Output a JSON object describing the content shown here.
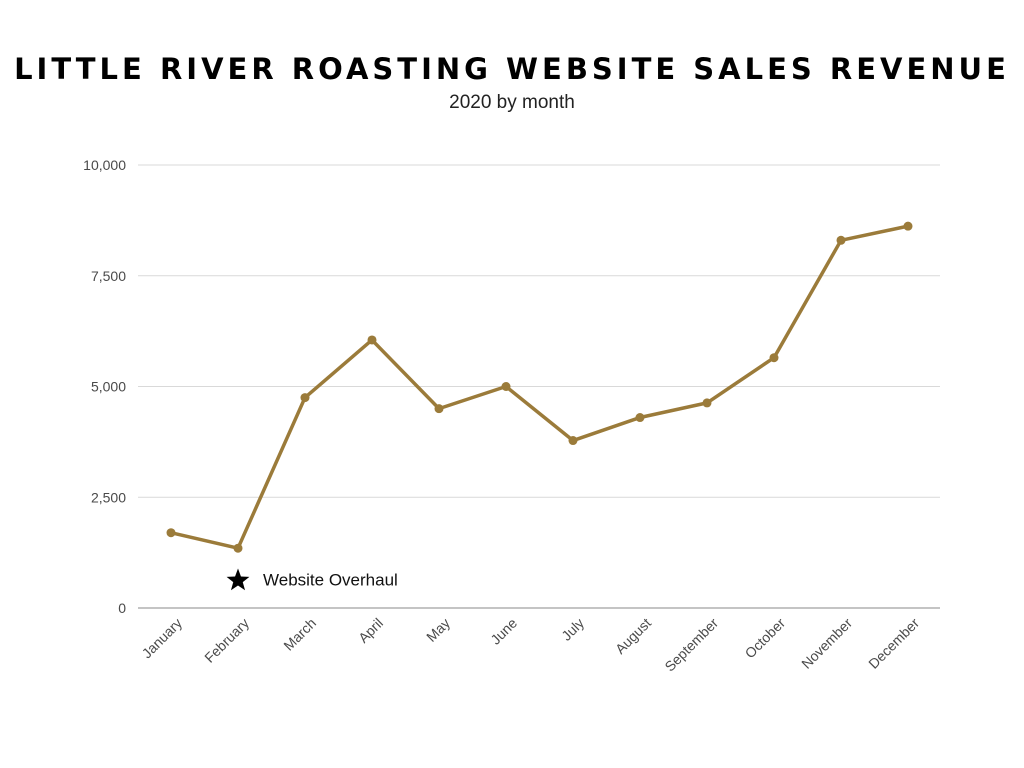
{
  "chart_data": {
    "type": "line",
    "title": "LITTLE RIVER ROASTING WEBSITE SALES REVENUE",
    "subtitle": "2020 by month",
    "categories": [
      "January",
      "February",
      "March",
      "April",
      "May",
      "June",
      "July",
      "August",
      "September",
      "October",
      "November",
      "December"
    ],
    "series": [
      {
        "values": [
          1700,
          1350,
          4750,
          6050,
          4500,
          5000,
          3780,
          4300,
          4630,
          5650,
          8300,
          8620
        ]
      }
    ],
    "ylim": [
      0,
      10000
    ],
    "yticks": [
      0,
      2500,
      5000,
      7500,
      10000
    ],
    "ytick_labels": [
      "0",
      "2,500",
      "5,000",
      "7,500",
      "10,000"
    ],
    "grid": true,
    "line_color": "#9b7b3a",
    "annotation": {
      "text": "Website Overhaul",
      "icon": "star-icon",
      "category": "February",
      "value": 800
    }
  }
}
